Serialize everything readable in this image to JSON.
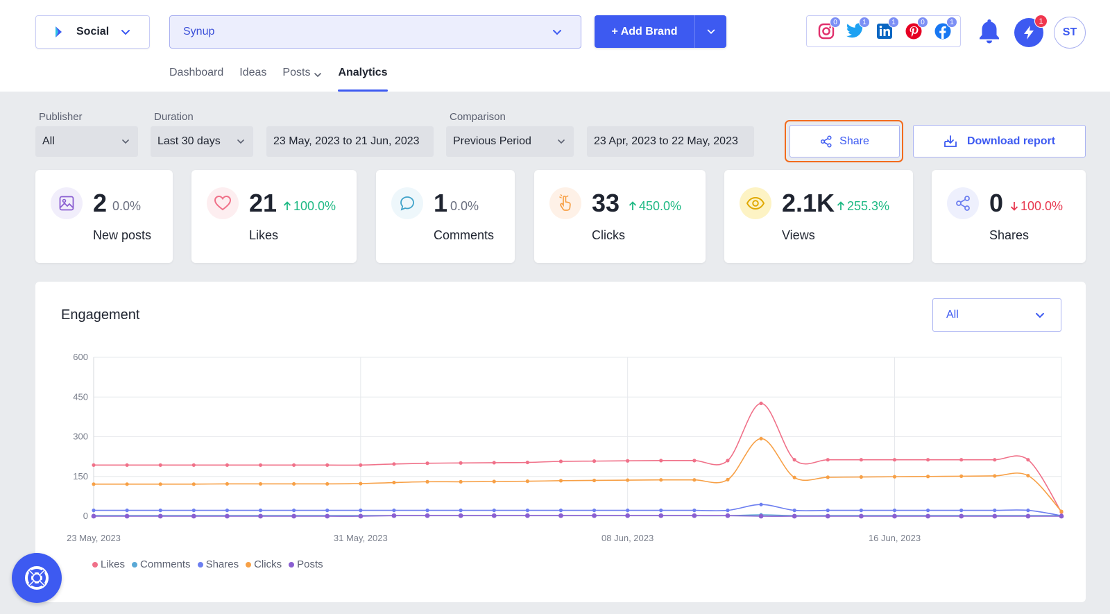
{
  "header": {
    "product": "Social",
    "brand": "Synup",
    "add_brand_label": "+ Add Brand",
    "socials": [
      {
        "name": "instagram-icon",
        "count": "0",
        "color": "#e1306c"
      },
      {
        "name": "twitter-icon",
        "count": "1",
        "color": "#1da1f2"
      },
      {
        "name": "linkedin-icon",
        "count": "1",
        "color": "#0a66c2"
      },
      {
        "name": "pinterest-icon",
        "count": "0",
        "color": "#e60023"
      },
      {
        "name": "facebook-icon",
        "count": "1",
        "color": "#1877f2"
      }
    ],
    "bolt_badge": "1",
    "avatar": "ST"
  },
  "nav": {
    "tabs": [
      {
        "label": "Dashboard"
      },
      {
        "label": "Ideas"
      },
      {
        "label": "Posts"
      },
      {
        "label": "Analytics",
        "active": true
      }
    ]
  },
  "filters": {
    "publisher_label": "Publisher",
    "publisher_value": "All",
    "duration_label": "Duration",
    "duration_value": "Last 30 days",
    "date_range": "23 May, 2023 to 21 Jun, 2023",
    "comparison_label": "Comparison",
    "comparison_value": "Previous Period",
    "comparison_range": "23 Apr, 2023 to 22 May, 2023",
    "share_label": "Share",
    "download_label": "Download report"
  },
  "stats": [
    {
      "value": "2",
      "change": "0.0%",
      "trend": "neutral",
      "label": "New posts",
      "icon": "image-icon"
    },
    {
      "value": "21",
      "change": "100.0%",
      "trend": "up",
      "label": "Likes",
      "icon": "heart-icon"
    },
    {
      "value": "1",
      "change": "0.0%",
      "trend": "neutral",
      "label": "Comments",
      "icon": "comment-icon"
    },
    {
      "value": "33",
      "change": "450.0%",
      "trend": "up",
      "label": "Clicks",
      "icon": "pointer-icon"
    },
    {
      "value": "2.1K",
      "change": "255.3%",
      "trend": "up",
      "label": "Views",
      "icon": "eye-icon"
    },
    {
      "value": "0",
      "change": "100.0%",
      "trend": "down",
      "label": "Shares",
      "icon": "share-icon"
    }
  ],
  "engagement": {
    "title": "Engagement",
    "filter_value": "All"
  },
  "chart_data": {
    "type": "line",
    "title": "Engagement",
    "ylim": [
      0,
      600
    ],
    "yticks": [
      0,
      150,
      300,
      450,
      600
    ],
    "xticks": [
      "23 May, 2023",
      "31 May, 2023",
      "08 Jun, 2023",
      "16 Jun, 2023"
    ],
    "grid": true,
    "legend_position": "bottom-left",
    "x": [
      "23 May",
      "24 May",
      "25 May",
      "26 May",
      "27 May",
      "28 May",
      "29 May",
      "30 May",
      "31 May",
      "01 Jun",
      "02 Jun",
      "03 Jun",
      "04 Jun",
      "05 Jun",
      "06 Jun",
      "07 Jun",
      "08 Jun",
      "09 Jun",
      "10 Jun",
      "11 Jun",
      "12 Jun",
      "13 Jun",
      "14 Jun",
      "15 Jun",
      "16 Jun",
      "17 Jun",
      "18 Jun",
      "19 Jun",
      "20 Jun",
      "21 Jun"
    ],
    "series": [
      {
        "name": "Likes",
        "color": "#f07189",
        "values": [
          193,
          193,
          193,
          193,
          193,
          193,
          193,
          193,
          193,
          197,
          200,
          201,
          202,
          203,
          207,
          208,
          209,
          210,
          210,
          210,
          426,
          213,
          213,
          213,
          213,
          213,
          213,
          213,
          213,
          15
        ]
      },
      {
        "name": "Comments",
        "color": "#5aa9d6",
        "values": [
          2,
          2,
          2,
          2,
          2,
          2,
          2,
          2,
          2,
          2,
          2,
          2,
          2,
          2,
          2,
          2,
          2,
          2,
          2,
          2,
          5,
          2,
          2,
          2,
          2,
          2,
          2,
          2,
          2,
          2
        ]
      },
      {
        "name": "Shares",
        "color": "#6c7ef0",
        "values": [
          22,
          22,
          22,
          22,
          22,
          22,
          22,
          22,
          22,
          22,
          22,
          22,
          22,
          22,
          22,
          22,
          22,
          22,
          22,
          22,
          44,
          22,
          22,
          22,
          22,
          22,
          22,
          22,
          22,
          2
        ]
      },
      {
        "name": "Clicks",
        "color": "#f7a046",
        "values": [
          121,
          121,
          121,
          121,
          122,
          122,
          122,
          122,
          123,
          127,
          130,
          130,
          131,
          132,
          134,
          135,
          136,
          137,
          137,
          138,
          293,
          146,
          147,
          148,
          149,
          150,
          151,
          152,
          153,
          18
        ]
      },
      {
        "name": "Posts",
        "color": "#8a5fd1",
        "values": [
          0,
          0,
          0,
          0,
          0,
          0,
          0,
          0,
          0,
          2,
          2,
          2,
          2,
          2,
          2,
          2,
          2,
          2,
          2,
          2,
          0,
          0,
          0,
          0,
          0,
          0,
          0,
          0,
          0,
          0
        ]
      }
    ]
  }
}
